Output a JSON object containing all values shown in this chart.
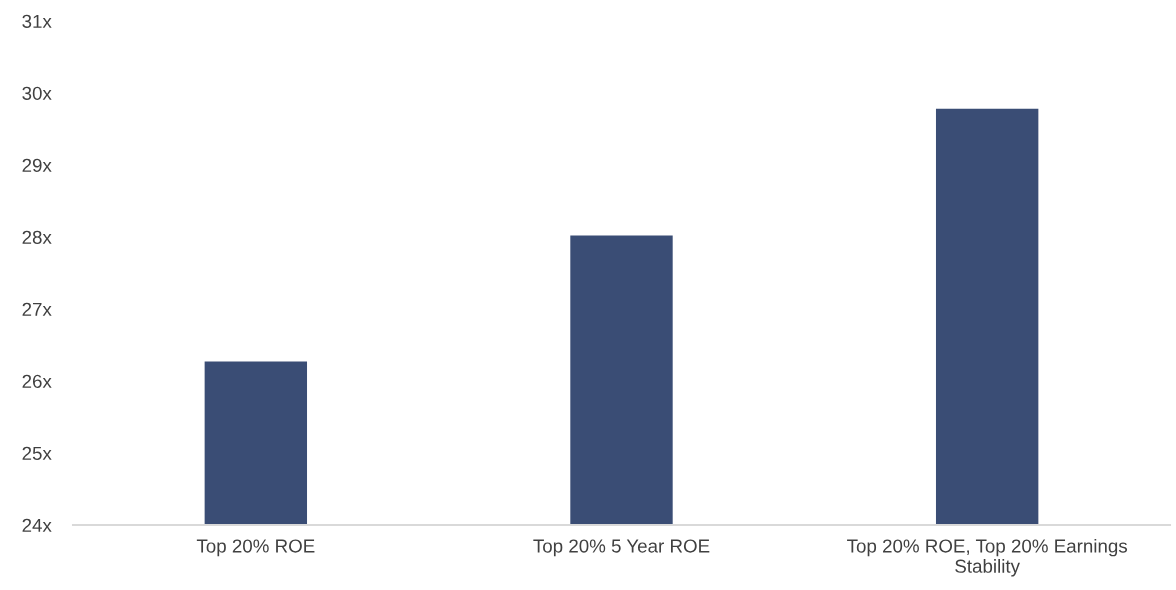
{
  "chart_data": {
    "type": "bar",
    "categories": [
      "Top 20% ROE",
      "Top 20% 5 Year ROE",
      "Top 20% ROE, Top 20% Earnings\nStability"
    ],
    "values": [
      26.27,
      28.02,
      29.78
    ],
    "color": "#3a4d75",
    "ylim": [
      24,
      31
    ],
    "yticks": [
      {
        "value": 24,
        "label": "24x"
      },
      {
        "value": 25,
        "label": "25x"
      },
      {
        "value": 26,
        "label": "26x"
      },
      {
        "value": 27,
        "label": "27x"
      },
      {
        "value": 28,
        "label": "28x"
      },
      {
        "value": 29,
        "label": "29x"
      },
      {
        "value": 30,
        "label": "30x"
      },
      {
        "value": 31,
        "label": "31x"
      }
    ],
    "grid": false,
    "legend": false
  }
}
